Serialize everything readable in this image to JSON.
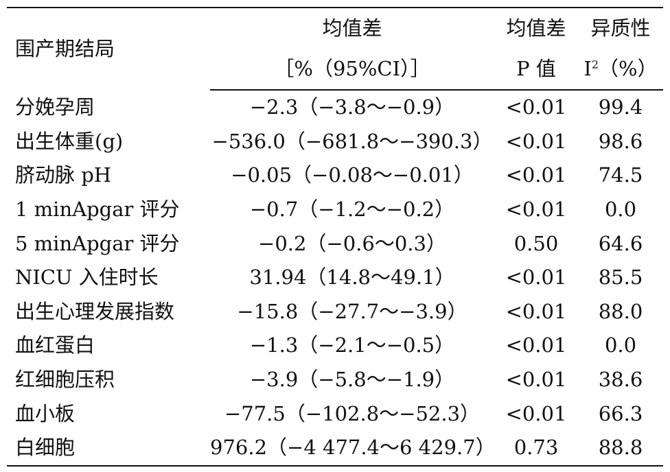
{
  "table": {
    "header": {
      "outcome": "围产期结局",
      "mean_diff": "均值差",
      "mean_diff_ci": "［%（95%CI）］",
      "p_top": "均值差",
      "p_bottom": "P 值",
      "het_top": "异质性",
      "het_bottom_base": "I",
      "het_bottom_sup": "2",
      "het_bottom_unit": "（%）"
    },
    "rows": [
      {
        "outcome": "分娩孕周",
        "md": "−2.3（−3.8～−0.9）",
        "p": "<0.01",
        "i2": "99.4"
      },
      {
        "outcome": "出生体重(g)",
        "md": "−536.0（−681.8～−390.3）",
        "p": "<0.01",
        "i2": "98.6"
      },
      {
        "outcome": "脐动脉 pH",
        "md": "−0.05（−0.08～−0.01）",
        "p": "<0.01",
        "i2": "74.5"
      },
      {
        "outcome": "1 minApgar 评分",
        "md": "−0.7（−1.2～−0.2）",
        "p": "<0.01",
        "i2": "0.0"
      },
      {
        "outcome": "5 minApgar 评分",
        "md": "−0.2（−0.6～0.3）",
        "p": "0.50",
        "i2": "64.6"
      },
      {
        "outcome": "NICU 入住时长",
        "md": "31.94（14.8～49.1）",
        "p": "<0.01",
        "i2": "85.5"
      },
      {
        "outcome": "出生心理发展指数",
        "md": "−15.8（−27.7～−3.9）",
        "p": "<0.01",
        "i2": "88.0"
      },
      {
        "outcome": "血红蛋白",
        "md": "−1.3（−2.1～−0.5）",
        "p": "<0.01",
        "i2": "0.0"
      },
      {
        "outcome": "红细胞压积",
        "md": "−3.9（−5.8～−1.9）",
        "p": "<0.01",
        "i2": "38.6"
      },
      {
        "outcome": "血小板",
        "md": "−77.5（−102.8～−52.3）",
        "p": "<0.01",
        "i2": "66.3"
      },
      {
        "outcome": "白细胞",
        "md": "976.2（−4 477.4～6 429.7）",
        "p": "0.73",
        "i2": "88.8"
      }
    ]
  }
}
